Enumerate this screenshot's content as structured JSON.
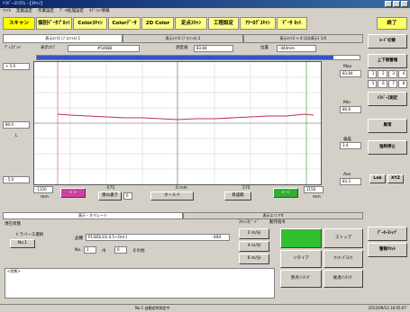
{
  "window": {
    "title": "ﾄﾗﾊﾞｰｽｼｽﾃﾑ - [ｽｷｬﾝ]"
  },
  "menu": [
    "ﾌｧｲﾙ",
    "定義設定",
    "作業設定",
    "ﾃﾞｰﾀ処理設定",
    "ｵﾌﾟｼｮﾝ情報"
  ],
  "toolbar": {
    "buttons": [
      "スキャン",
      "個別ﾃﾞｰﾀﾌﾟﾛｯﾄ",
      "Colorｽｷｬﾝ",
      "Colorﾃﾞｰﾀ",
      "2D Color",
      "定点ｽｷｬﾝ",
      "工程設定",
      "ｱﾅｰﾛｸﾞｽｷｬﾝ",
      "ﾃﾞｰﾀ ﾈｯﾄ"
    ],
    "exit_label": "終了"
  },
  "tabs": [
    "表示ｴﾘｱ1 (ﾌﾟﾛﾌｧｲﾙ) 1",
    "表示ｴﾘｱ2 (ﾌﾟﾛﾌｧｲﾙ) 2",
    "表示ｴﾘｱ3 + 4 (2次表示) 1/4"
  ],
  "info": {
    "left_label": "ﾃﾞｨｽﾌﾟﾚｲ",
    "area_label": "表示ｴﾘｱ",
    "area_value": "#54688",
    "measure_label": "測定値",
    "measure_value": "83.84",
    "pos_label": "位置",
    "pos_value": "-444mm"
  },
  "progress": {
    "percent": 92
  },
  "plot": {
    "y_top": "+ 5.0",
    "y_mid": "80.0",
    "y_mid_l": "L",
    "y_bottom": "- 5.0",
    "right_labels": [
      "Max",
      "83.84",
      "Min",
      "80.8",
      "偏差",
      "3.4",
      "Ave",
      "83.3"
    ]
  },
  "xaxis": {
    "left_val": "-1150",
    "left_unit": "mm",
    "mid_left": "-575",
    "mid": "0 mm",
    "mid_right": "575",
    "right_val": "1150",
    "right_unit": "mm",
    "btn_magenta": "< >",
    "zoom_label": "重ね書き",
    "zoom_value": "0",
    "hold_label": "ホールド",
    "auto_label": "目盛範",
    "btn_green": "> <"
  },
  "sidebar": {
    "b1": "ｺｰﾄﾞ切替",
    "b2": "上下限警報",
    "nums": [
      "1",
      "2",
      "3",
      "4",
      "5",
      "6",
      "7",
      "8"
    ],
    "b3": "ﾄﾗﾊﾞｰｽ測定",
    "b4": "異常",
    "b5": "強制停止",
    "lab": "Lab",
    "xyz": "XYZ",
    "b6": "ﾃﾞｰﾀｰｽﾄｯﾌﾟ",
    "b7": "警報ﾘｾｯﾄ"
  },
  "lower": {
    "tab1": "表示・オペレート",
    "tab2": "表示エリア4",
    "status_title": "現在状態",
    "traverse_label": "トラバース選択",
    "traverse_value": "No.1",
    "product_label": "品種",
    "product_value": "P13ED(33) 0.5~2m(-)",
    "product_extra": "-300",
    "no_label": "No.",
    "no_value": "1",
    "width_label": "巾",
    "width_value": "0",
    "other_label": "その他",
    "speed_title": "ｽｷｬﾝｽﾋﾟｰﾄﾞ",
    "op_title": "動作指令",
    "speeds": [
      "2 m/分",
      "4 m/分",
      "6 m/分"
    ],
    "ops": [
      "",
      "ストップ",
      "リタイア",
      "ｾﾝﾀｰﾌﾞﾛｯｸ",
      "原点ｲﾝﾁﾝｸﾞ",
      "後退ｲﾝﾁﾝｸﾞ"
    ],
    "log_text": "<状態>"
  },
  "status": {
    "center": "No.1 自動定時測定中",
    "right": "2012/09/14 16:05:07"
  }
}
